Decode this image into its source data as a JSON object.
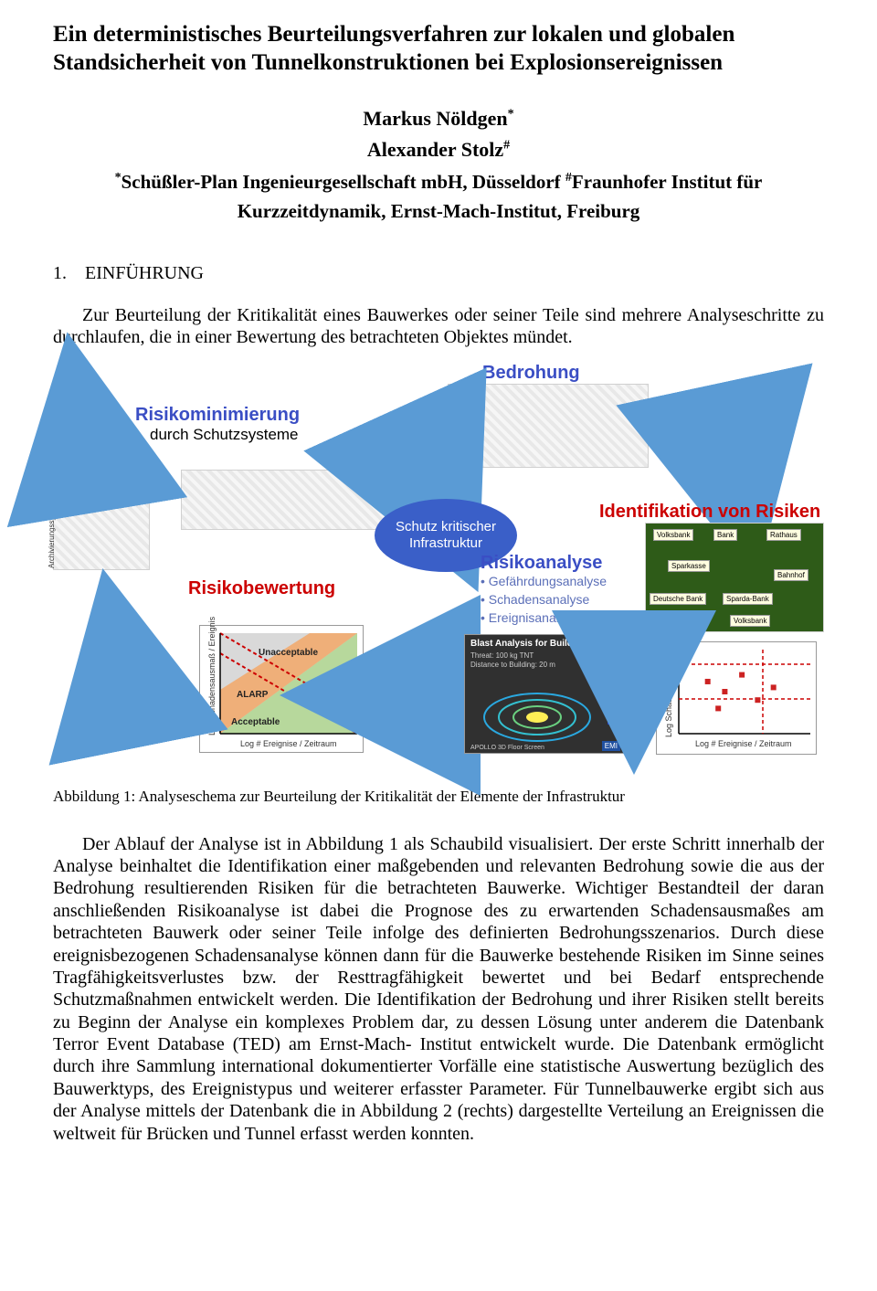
{
  "title": "Ein deterministisches Beurteilungsverfahren zur lokalen und globalen Standsicherheit von Tunnelkonstruktionen bei Explosionsereignissen",
  "authors": {
    "a1_name": "Markus Nöldgen",
    "a1_mark": "*",
    "a2_name": "Alexander Stolz",
    "a2_mark": "#"
  },
  "affiliations": {
    "aff1_mark": "*",
    "aff1_text": "Schüßler-Plan Ingenieurgesellschaft mbH, Düsseldorf",
    "aff2_mark": "#",
    "aff2_text": "Fraunhofer Institut für Kurzzeitdynamik, Ernst-Mach-Institut, Freiburg"
  },
  "section1": {
    "number": "1.",
    "title": "EINFÜHRUNG"
  },
  "para1": "Zur Beurteilung der Kritikalität eines Bauwerkes oder seiner Teile sind mehrere Analyseschritte zu durchlaufen, die in einer Bewertung des betrachteten Objektes mündet.",
  "diagram": {
    "labels": {
      "bedrohung": "Bedrohung",
      "risikomin": "Risikominimierung",
      "risikomin_sub": "durch Schutzsysteme",
      "ident": "Identifikation von Risiken",
      "risikobewertung": "Risikobewertung",
      "risikoanalyse": "Risikoanalyse",
      "bullet1": "• Gefährdungsanalyse",
      "bullet2": "• Schadensanalyse",
      "bullet3": "• Ereignisanalyse",
      "center": "Schutz kritischer Infrastruktur",
      "chart_unacc": "Unacceptable",
      "chart_alarp": "ALARP",
      "chart_acc": "Acceptable",
      "chart_y": "Log Schadensausmaß / Ereignis",
      "chart_x": "Log # Ereignise / Zeitraum",
      "blast_title": "Blast Analysis for Buildings",
      "blast_sub1": "Threat: 100 kg TNT",
      "blast_sub2": "Distance to Building: 20 m",
      "blast_emi": "EMI",
      "map_title_prefix": "APOLLO 3D Floor Screen",
      "map_tags": [
        "Volksbank",
        "Bank",
        "Rathaus",
        "Sparkasse",
        "Bahnhof",
        "Deutsche Bank",
        "Sparda-Bank",
        "Volksbank"
      ],
      "side_caption": "Archivierungssystem"
    },
    "colors": {
      "blue_text": "#3a4ec4",
      "red_text": "#cc0000",
      "arrow_fill": "#5a9bd5",
      "ellipse_fill": "#3a5fc8",
      "chart_unacc_bg": "#d9d9d9",
      "chart_diag": "#cc0000",
      "chart_fill_orange": "#f4a460",
      "chart_fill_green": "#b7d89c",
      "map_bg": "#2e5b18"
    },
    "scatter_right": {
      "points": [
        [
          0.22,
          0.62
        ],
        [
          0.35,
          0.5
        ],
        [
          0.48,
          0.7
        ],
        [
          0.6,
          0.4
        ],
        [
          0.72,
          0.55
        ],
        [
          0.3,
          0.3
        ]
      ],
      "point_color": "#cc2222"
    }
  },
  "caption1": "Abbildung 1: Analyseschema zur Beurteilung der Kritikalität der Elemente der Infrastruktur",
  "para2": "Der Ablauf der Analyse ist in Abbildung 1 als Schaubild visualisiert. Der erste Schritt innerhalb der Analyse beinhaltet die Identifikation einer maßgebenden und relevanten Bedrohung sowie die aus der Bedrohung resultierenden Risiken für die betrachteten Bauwerke. Wichtiger Bestandteil der daran anschließenden Risikoanalyse ist dabei die Prognose des zu erwartenden Schadensausmaßes  am betrachteten Bauwerk oder seiner Teile infolge des definierten Bedrohungsszenarios. Durch diese ereignisbezogenen Schadensanalyse können dann für die Bauwerke bestehende Risiken im Sinne seines Tragfähigkeitsverlustes bzw. der Resttragfähigkeit bewertet und bei Bedarf entsprechende Schutzmaßnahmen entwickelt werden. Die Identifikation der Bedrohung und ihrer Risiken stellt bereits zu Beginn der Analyse ein komplexes Problem dar, zu dessen Lösung unter anderem die Datenbank Terror Event Database (TED) am Ernst-Mach- Institut entwickelt wurde. Die Datenbank ermöglicht durch ihre Sammlung international dokumentierter Vorfälle eine statistische Auswertung bezüglich des Bauwerktyps, des Ereignistypus und weiterer erfasster Parameter. Für Tunnelbauwerke ergibt sich aus der Analyse mittels der Datenbank die in Abbildung 2 (rechts) dargestellte Verteilung an Ereignissen die weltweit für Brücken und Tunnel erfasst werden konnten."
}
